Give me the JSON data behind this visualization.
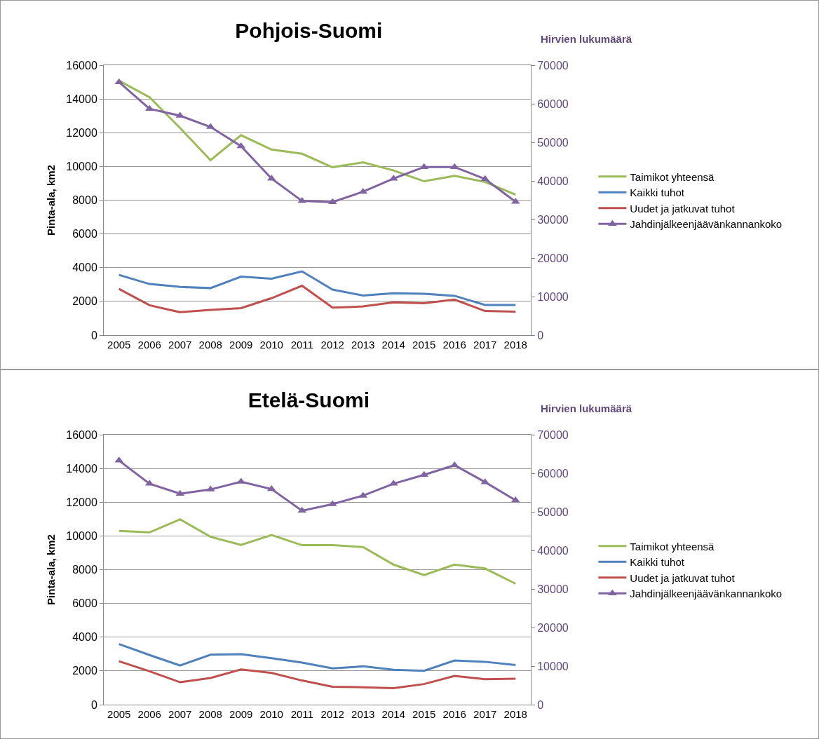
{
  "chart_data": [
    {
      "type": "line",
      "title": "Pohjois-Suomi",
      "ylabel": "Pinta-ala, km2",
      "y2label": "Hirvien lukumäärä",
      "categories": [
        "2005",
        "2006",
        "2007",
        "2008",
        "2009",
        "2010",
        "2011",
        "2012",
        "2013",
        "2014",
        "2015",
        "2016",
        "2017",
        "2018"
      ],
      "series": [
        {
          "name": "Taimikot yhteensä",
          "color": "#9bbb59",
          "values": [
            15080,
            14100,
            12280,
            10370,
            11850,
            11000,
            10750,
            9950,
            10240,
            9760,
            9120,
            9440,
            9080,
            8330
          ]
        },
        {
          "name": "Kaikki tuhot",
          "color": "#4f81bd",
          "values": [
            3570,
            3030,
            2860,
            2790,
            3470,
            3350,
            3780,
            2700,
            2350,
            2480,
            2450,
            2330,
            1790,
            1790
          ]
        },
        {
          "name": "Uudet ja jatkuvat tuhot",
          "color": "#c0504d",
          "values": [
            2740,
            1770,
            1360,
            1500,
            1600,
            2190,
            2930,
            1630,
            1700,
            1940,
            1890,
            2110,
            1430,
            1390
          ]
        },
        {
          "name": "Jahdinjälkeenjäävänkannankoko",
          "color": "#8064a2",
          "axis": "y2",
          "marker": "triangle",
          "values": [
            65600,
            58700,
            56900,
            54000,
            49000,
            40600,
            34800,
            34500,
            37200,
            40600,
            43600,
            43600,
            40500,
            34600
          ]
        }
      ],
      "ylim": [
        0,
        16000
      ],
      "yticks": [
        0,
        2000,
        4000,
        6000,
        8000,
        10000,
        12000,
        14000,
        16000
      ],
      "y2lim": [
        0,
        70000
      ],
      "y2ticks": [
        0,
        10000,
        20000,
        30000,
        40000,
        50000,
        60000,
        70000
      ],
      "grid": "y",
      "legend": "right",
      "marker": "none",
      "line_style": "solid"
    },
    {
      "type": "line",
      "title": "Etelä-Suomi",
      "ylabel": "Pinta-ala, km2",
      "y2label": "Hirvien lukumäärä",
      "categories": [
        "2005",
        "2006",
        "2007",
        "2008",
        "2009",
        "2010",
        "2011",
        "2012",
        "2013",
        "2014",
        "2015",
        "2016",
        "2017",
        "2018"
      ],
      "series": [
        {
          "name": "Taimikot yhteensä",
          "color": "#9bbb59",
          "values": [
            10300,
            10210,
            10980,
            9950,
            9470,
            10050,
            9450,
            9450,
            9340,
            8300,
            7680,
            8300,
            8070,
            7170
          ]
        },
        {
          "name": "Kaikki tuhot",
          "color": "#4f81bd",
          "values": [
            3590,
            2940,
            2320,
            2960,
            2990,
            2750,
            2490,
            2150,
            2270,
            2070,
            2010,
            2620,
            2540,
            2350
          ]
        },
        {
          "name": "Uudet ja jatkuvat tuhot",
          "color": "#c0504d",
          "values": [
            2570,
            1980,
            1330,
            1580,
            2090,
            1880,
            1430,
            1060,
            1030,
            980,
            1220,
            1700,
            1510,
            1540
          ]
        },
        {
          "name": "Jahdinjälkeenjäävänkannankoko",
          "color": "#8064a2",
          "axis": "y2",
          "marker": "triangle",
          "values": [
            63300,
            57300,
            54700,
            55800,
            57800,
            55900,
            50300,
            52000,
            54200,
            57300,
            59600,
            62100,
            57700,
            53000
          ]
        }
      ],
      "ylim": [
        0,
        16000
      ],
      "yticks": [
        0,
        2000,
        4000,
        6000,
        8000,
        10000,
        12000,
        14000,
        16000
      ],
      "y2lim": [
        0,
        70000
      ],
      "y2ticks": [
        0,
        10000,
        20000,
        30000,
        40000,
        50000,
        60000,
        70000
      ],
      "grid": "y",
      "legend": "right",
      "marker": "none",
      "line_style": "solid"
    }
  ]
}
